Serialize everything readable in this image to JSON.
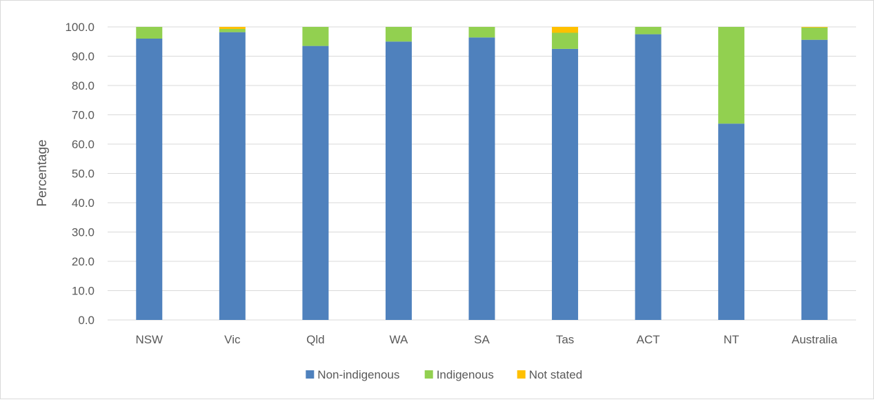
{
  "chart_data": {
    "type": "bar",
    "stacked": true,
    "categories": [
      "NSW",
      "Vic",
      "Qld",
      "WA",
      "SA",
      "Tas",
      "ACT",
      "NT",
      "Australia"
    ],
    "series": [
      {
        "name": "Non-indigenous",
        "color": "#4f81bd",
        "values": [
          96.0,
          98.2,
          93.5,
          95.0,
          96.4,
          92.5,
          97.5,
          67.0,
          95.6
        ]
      },
      {
        "name": "Indigenous",
        "color": "#92d050",
        "values": [
          4.0,
          1.1,
          6.5,
          5.0,
          3.6,
          5.5,
          2.5,
          33.0,
          4.2
        ]
      },
      {
        "name": "Not stated",
        "color": "#ffc000",
        "values": [
          0.0,
          0.7,
          0.0,
          0.0,
          0.0,
          2.0,
          0.0,
          0.0,
          0.2
        ]
      }
    ],
    "xlabel": "",
    "ylabel": "Percentage",
    "ylim": [
      0,
      100
    ],
    "yticks": [
      "0.0",
      "10.0",
      "20.0",
      "30.0",
      "40.0",
      "50.0",
      "60.0",
      "70.0",
      "80.0",
      "90.0",
      "100.0"
    ],
    "grid": true,
    "legend_position": "bottom"
  }
}
